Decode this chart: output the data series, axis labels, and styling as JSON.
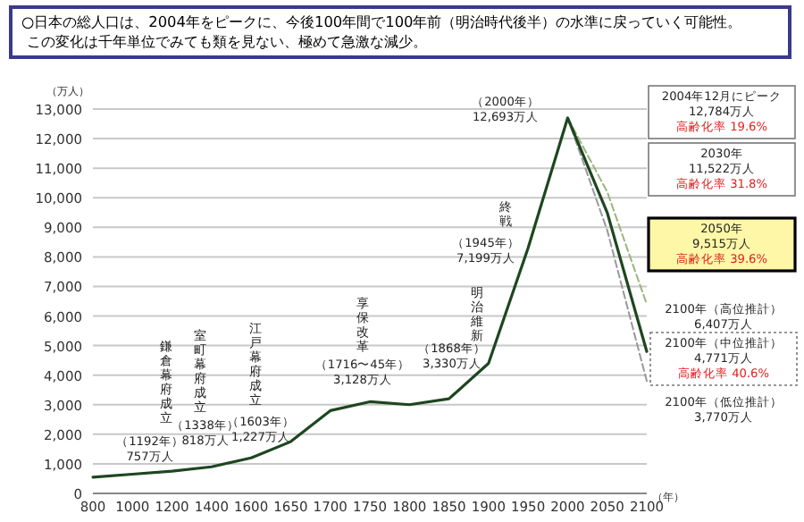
{
  "chart_data": {
    "type": "line",
    "title": "○日本の総人口は、2004年をピークに、今後100年間で100年前（明治時代後半）の水準に戻っていく可能性。",
    "subtitle": "この変化は千年単位でみても類を見ない、極めて急激な減少。",
    "ylabel": "（万人）",
    "xlabel": "（年）",
    "categories": [
      "800",
      "1000",
      "1200",
      "1400",
      "1600",
      "1650",
      "1700",
      "1750",
      "1800",
      "1850",
      "1900",
      "1950",
      "2000",
      "2050",
      "2100"
    ],
    "series": [
      {
        "color": "#1e4620",
        "line_style": "solid",
        "values": [
          550,
          650,
          750,
          900,
          1200,
          1750,
          2800,
          3100,
          3000,
          3200,
          4400,
          8300,
          12700,
          9500,
          4800
        ]
      },
      {
        "color": "#9bb57a",
        "line_style": "dashed",
        "values": [
          null,
          null,
          null,
          null,
          null,
          null,
          null,
          null,
          null,
          null,
          null,
          null,
          12700,
          10200,
          6400
        ]
      },
      {
        "color": "#999999",
        "line_style": "dashed",
        "values": [
          null,
          null,
          null,
          null,
          null,
          null,
          null,
          null,
          null,
          null,
          null,
          null,
          12700,
          8900,
          3800
        ]
      }
    ],
    "ylim": [
      0,
      13000
    ],
    "yticks": [
      0,
      {
        "value": 1000,
        "label": "1,000"
      },
      {
        "value": 2000,
        "label": "2,000"
      },
      {
        "value": 3000,
        "label": "3,000"
      },
      {
        "value": 4000,
        "label": "4,000"
      },
      {
        "value": 5000,
        "label": "5,000"
      },
      {
        "value": 6000,
        "label": "6,000"
      },
      {
        "value": 7000,
        "label": "7,000"
      },
      {
        "value": 8000,
        "label": "8,000"
      },
      {
        "value": 9000,
        "label": "9,000"
      },
      {
        "value": 10000,
        "label": "10,000"
      },
      {
        "value": 11000,
        "label": "11,000"
      },
      {
        "value": 12000,
        "label": "12,000"
      },
      {
        "value": 13000,
        "label": "13,000"
      }
    ],
    "grid": "y",
    "annotations": [
      "鎌倉幕府成立",
      "（1192年）\n757万人",
      "室町幕府成立",
      "（1338年）\n818万人",
      "江戸幕府成立",
      "（1603年）\n1,227万人",
      "享保改革",
      "（1716〜45年）\n3,128万人",
      "明治維新",
      "（1868年）\n3,330万人",
      "終戦",
      "（1945年）\n7,199万人",
      "（2000年）\n12,693万人",
      "2004年12月にピーク\n12,784万人",
      "高齢化率 19.6%",
      "2030年\n11,522万人",
      "高齢化率 31.8%",
      "2050年\n9,515万人",
      "高齢化率 39.6%",
      "2100年（高位推計）\n6,407万人",
      "2100年（中位推計）\n4,771万人",
      "高齢化率 40.6%",
      "2100年（低位推計）\n3,770万人"
    ]
  }
}
